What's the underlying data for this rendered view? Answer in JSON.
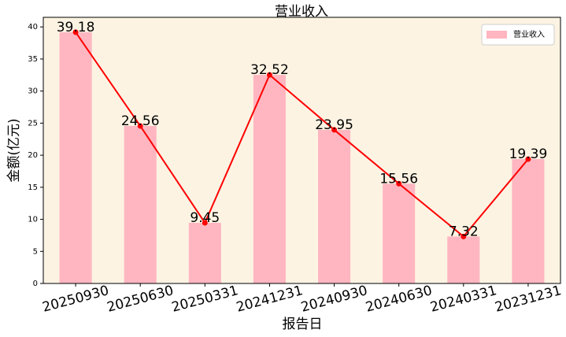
{
  "chart_data": {
    "type": "bar",
    "title": "营业收入",
    "x_label": "报告日",
    "y_label": "金额(亿元)",
    "categories": [
      "20250930",
      "20250630",
      "20250331",
      "20241231",
      "20240930",
      "20240630",
      "20240331",
      "20231231"
    ],
    "series": [
      {
        "name": "营业收入",
        "color": "#ffb6c1",
        "values": [
          39.18,
          24.56,
          9.45,
          32.52,
          23.95,
          15.56,
          7.32,
          19.39
        ]
      }
    ],
    "line_color": "#ff0000",
    "background": "#fdf3e3",
    "ylim": [
      0,
      41.5
    ],
    "yticks": [
      0,
      5,
      10,
      15,
      20,
      25,
      30,
      35,
      40
    ],
    "legend": "upper right"
  }
}
